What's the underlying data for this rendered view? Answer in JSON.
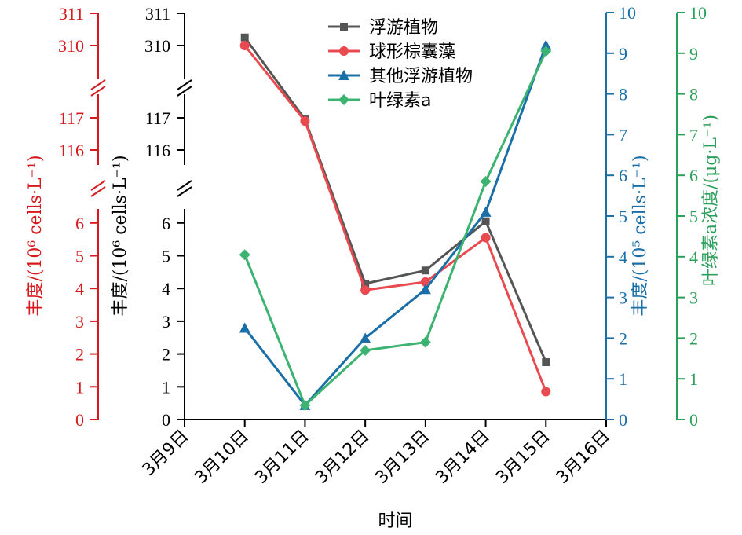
{
  "chart_data": {
    "type": "line",
    "categories": [
      "3月9日",
      "3月10日",
      "3月11日",
      "3月12日",
      "3月13日",
      "3月14日",
      "3月15日",
      "3月16日"
    ],
    "xlabel": "时间",
    "left_axes": [
      {
        "label": "丰度/(10⁶ cells·L⁻¹)",
        "color": "#d7191c",
        "lower_ticks": [
          "0",
          "1",
          "2",
          "3",
          "4",
          "5",
          "6"
        ],
        "mid_ticks": [
          "116",
          "117"
        ],
        "upper_ticks": [
          "310",
          "311"
        ]
      },
      {
        "label": "丰度/(10⁶ cells·L⁻¹)",
        "color": "#000000",
        "lower_ticks": [
          "0",
          "1",
          "2",
          "3",
          "4",
          "5",
          "6"
        ],
        "mid_ticks": [
          "116",
          "117"
        ],
        "upper_ticks": [
          "310",
          "311"
        ]
      }
    ],
    "right_axes": [
      {
        "label": "丰度/(10⁵ cells·L⁻¹)",
        "color": "#1a6fa8",
        "ticks": [
          "0",
          "1",
          "2",
          "3",
          "4",
          "5",
          "6",
          "7",
          "8",
          "9",
          "10"
        ],
        "ylim": [
          0,
          10
        ]
      },
      {
        "label": "叶绿素a浓度/(μg·L⁻¹)",
        "color": "#2ca05a",
        "ticks": [
          "0",
          "1",
          "2",
          "3",
          "4",
          "5",
          "6",
          "7",
          "8",
          "9",
          "10"
        ],
        "ylim": [
          0,
          10
        ]
      }
    ],
    "series": [
      {
        "name": "浮游植物",
        "color": "#555555",
        "marker": "square",
        "axis": "left",
        "x": [
          "3月10日",
          "3月11日",
          "3月12日",
          "3月13日",
          "3月14日",
          "3月15日"
        ],
        "values": [
          310.25,
          116.95,
          4.15,
          4.55,
          6.05,
          1.75
        ]
      },
      {
        "name": "球形棕囊藻",
        "color": "#e84a4f",
        "marker": "circle",
        "axis": "left",
        "x": [
          "3月10日",
          "3月11日",
          "3月12日",
          "3月13日",
          "3月14日",
          "3月15日"
        ],
        "values": [
          310.0,
          116.9,
          3.95,
          4.2,
          5.55,
          0.85
        ]
      },
      {
        "name": "其他浮游植物",
        "color": "#1a6fa8",
        "marker": "triangle",
        "axis": "right1",
        "x": [
          "3月10日",
          "3月11日",
          "3月12日",
          "3月13日",
          "3月14日",
          "3月15日"
        ],
        "values": [
          2.25,
          0.35,
          2.0,
          3.2,
          5.1,
          9.2
        ]
      },
      {
        "name": "叶绿素a",
        "color": "#3cb371",
        "marker": "diamond",
        "axis": "right2",
        "x": [
          "3月10日",
          "3月11日",
          "3月12日",
          "3月13日",
          "3月14日",
          "3月15日"
        ],
        "values": [
          4.05,
          0.35,
          1.7,
          1.9,
          5.85,
          9.05
        ]
      }
    ],
    "legend_position": "top-center"
  }
}
